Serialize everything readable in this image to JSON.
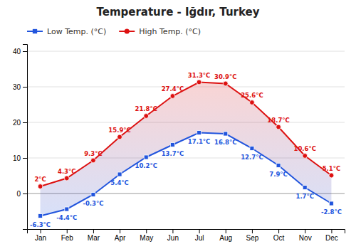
{
  "chart_data": {
    "type": "line",
    "title": "Temperature - Iğdır, Turkey",
    "categories": [
      "Jan",
      "Feb",
      "Mar",
      "Apr",
      "May",
      "Jun",
      "Jul",
      "Aug",
      "Sep",
      "Oct",
      "Nov",
      "Dec"
    ],
    "series": [
      {
        "name": "Low Temp. (°C)",
        "color": "#2255dd",
        "marker": "square",
        "values": [
          -6.3,
          -4.4,
          -0.3,
          5.4,
          10.2,
          13.7,
          17.1,
          16.8,
          12.7,
          7.9,
          1.7,
          -2.8
        ],
        "value_labels": [
          "-6.3°C",
          "-4.4°C",
          "-0.3°C",
          "5.4°C",
          "10.2°C",
          "13.7°C",
          "17.1°C",
          "16.8°C",
          "12.7°C",
          "7.9°C",
          "1.7°C",
          "-2.8°C"
        ]
      },
      {
        "name": "High Temp. (°C)",
        "color": "#dd1111",
        "marker": "circle",
        "values": [
          2.0,
          4.3,
          9.3,
          15.9,
          21.8,
          27.4,
          31.3,
          30.9,
          25.6,
          18.7,
          10.6,
          5.1
        ],
        "value_labels": [
          "2°C",
          "4.3°C",
          "9.3°C",
          "15.9°C",
          "21.8°C",
          "27.4°C",
          "31.3°C",
          "30.9°C",
          "25.6°C",
          "18.7°C",
          "10.6°C",
          "5.1°C"
        ]
      }
    ],
    "ylim": [
      -10,
      42
    ],
    "yticks": [
      0,
      10,
      20,
      30,
      40
    ],
    "grid": true,
    "legend": "upper left",
    "data_labels": true
  }
}
